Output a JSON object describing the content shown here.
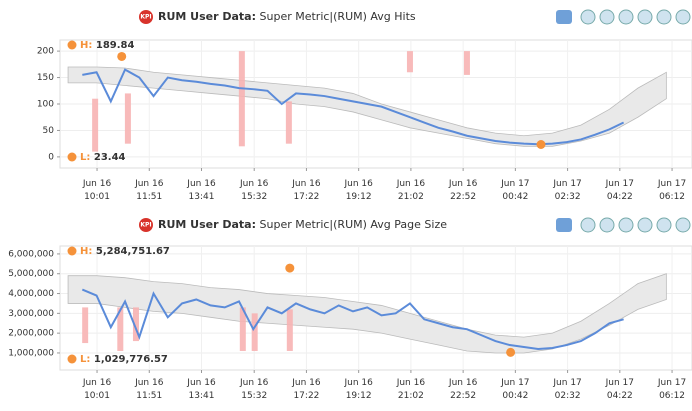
{
  "chart_data": [
    {
      "type": "line",
      "icon_label": "KPI",
      "title_prefix": "RUM User Data:",
      "title": "Super Metric|(RUM) Avg Hits",
      "color": "#5b8bd9",
      "xlim": [
        "Jun 16 08:43",
        "Jun 17 06:54"
      ],
      "xticks": [
        {
          "day": "Jun 16",
          "time": "10:01"
        },
        {
          "day": "Jun 16",
          "time": "11:51"
        },
        {
          "day": "Jun 16",
          "time": "13:41"
        },
        {
          "day": "Jun 16",
          "time": "15:32"
        },
        {
          "day": "Jun 16",
          "time": "17:22"
        },
        {
          "day": "Jun 16",
          "time": "19:12"
        },
        {
          "day": "Jun 16",
          "time": "21:02"
        },
        {
          "day": "Jun 16",
          "time": "22:52"
        },
        {
          "day": "Jun 17",
          "time": "00:42"
        },
        {
          "day": "Jun 17",
          "time": "02:32"
        },
        {
          "day": "Jun 17",
          "time": "04:22"
        },
        {
          "day": "Jun 17",
          "time": "06:12"
        }
      ],
      "ylim": [
        -21,
        221
      ],
      "yticks": [
        0,
        50,
        100,
        150,
        200
      ],
      "grid": true,
      "x": [
        "Jun 16 09:30",
        "Jun 16 10:00",
        "Jun 16 10:30",
        "Jun 16 11:00",
        "Jun 16 11:30",
        "Jun 16 12:00",
        "Jun 16 12:30",
        "Jun 16 13:00",
        "Jun 16 13:30",
        "Jun 16 14:00",
        "Jun 16 14:30",
        "Jun 16 15:00",
        "Jun 16 15:30",
        "Jun 16 16:00",
        "Jun 16 16:30",
        "Jun 16 17:00",
        "Jun 16 17:30",
        "Jun 16 18:00",
        "Jun 16 18:30",
        "Jun 16 19:00",
        "Jun 16 19:30",
        "Jun 16 20:00",
        "Jun 16 20:30",
        "Jun 16 21:00",
        "Jun 16 21:30",
        "Jun 16 22:00",
        "Jun 16 22:30",
        "Jun 16 23:00",
        "Jun 16 23:30",
        "Jun 17 00:00",
        "Jun 17 00:30",
        "Jun 17 01:00",
        "Jun 17 01:30",
        "Jun 17 02:00",
        "Jun 17 02:30",
        "Jun 17 03:00",
        "Jun 17 03:30",
        "Jun 17 04:00",
        "Jun 17 04:30"
      ],
      "values": [
        155,
        160,
        105,
        165,
        150,
        115,
        150,
        145,
        142,
        138,
        135,
        130,
        128,
        125,
        100,
        120,
        118,
        115,
        110,
        105,
        100,
        95,
        85,
        75,
        65,
        55,
        48,
        40,
        35,
        30,
        27,
        25,
        24,
        25,
        28,
        33,
        42,
        52,
        65
      ],
      "band": {
        "x": [
          "Jun 16 09:00",
          "Jun 16 10:00",
          "Jun 16 11:00",
          "Jun 16 12:00",
          "Jun 16 13:00",
          "Jun 16 14:00",
          "Jun 16 15:00",
          "Jun 16 16:00",
          "Jun 16 17:00",
          "Jun 16 18:00",
          "Jun 16 19:00",
          "Jun 16 20:00",
          "Jun 16 21:00",
          "Jun 16 22:00",
          "Jun 16 23:00",
          "Jun 17 00:00",
          "Jun 17 01:00",
          "Jun 17 02:00",
          "Jun 17 03:00",
          "Jun 17 04:00",
          "Jun 17 05:00",
          "Jun 17 06:00"
        ],
        "upper": [
          170,
          170,
          168,
          160,
          155,
          150,
          145,
          140,
          135,
          130,
          120,
          100,
          85,
          70,
          55,
          45,
          40,
          45,
          60,
          90,
          130,
          160
        ],
        "lower": [
          140,
          140,
          135,
          130,
          125,
          120,
          115,
          110,
          100,
          95,
          85,
          70,
          55,
          45,
          35,
          25,
          20,
          20,
          30,
          45,
          75,
          110
        ]
      },
      "alerts": [
        {
          "x": "Jun 16 09:57",
          "from": 10,
          "to": 110
        },
        {
          "x": "Jun 16 11:06",
          "from": 25,
          "to": 120
        },
        {
          "x": "Jun 16 15:06",
          "from": 20,
          "to": 200
        },
        {
          "x": "Jun 16 16:45",
          "from": 25,
          "to": 105
        },
        {
          "x": "Jun 16 21:00",
          "from": 160,
          "to": 200
        },
        {
          "x": "Jun 16 23:00",
          "from": 155,
          "to": 200
        }
      ],
      "high": {
        "label": "H:",
        "value": 189.84,
        "x": "Jun 16 10:53"
      },
      "low": {
        "label": "L:",
        "value": 23.44,
        "x": "Jun 17 01:36"
      }
    },
    {
      "type": "line",
      "icon_label": "KPI",
      "title_prefix": "RUM User Data:",
      "title": "Super Metric|(RUM) Avg Page Size",
      "color": "#5b8bd9",
      "xlim": [
        "Jun 16 08:43",
        "Jun 17 06:54"
      ],
      "xticks": [
        {
          "day": "Jun 16",
          "time": "10:01"
        },
        {
          "day": "Jun 16",
          "time": "11:51"
        },
        {
          "day": "Jun 16",
          "time": "13:41"
        },
        {
          "day": "Jun 16",
          "time": "15:32"
        },
        {
          "day": "Jun 16",
          "time": "17:22"
        },
        {
          "day": "Jun 16",
          "time": "19:12"
        },
        {
          "day": "Jun 16",
          "time": "21:02"
        },
        {
          "day": "Jun 16",
          "time": "22:52"
        },
        {
          "day": "Jun 17",
          "time": "00:42"
        },
        {
          "day": "Jun 17",
          "time": "02:32"
        },
        {
          "day": "Jun 17",
          "time": "04:22"
        },
        {
          "day": "Jun 17",
          "time": "06:12"
        }
      ],
      "ylim": [
        140000,
        6400000
      ],
      "yticks": [
        {
          "value": 1000000,
          "label": "1,000,000"
        },
        {
          "value": 2000000,
          "label": "2,000,000"
        },
        {
          "value": 3000000,
          "label": "3,000,000"
        },
        {
          "value": 4000000,
          "label": "4,000,000"
        },
        {
          "value": 5000000,
          "label": "5,000,000"
        },
        {
          "value": 6000000,
          "label": "6,000,000"
        }
      ],
      "grid": true,
      "x": [
        "Jun 16 09:30",
        "Jun 16 10:00",
        "Jun 16 10:30",
        "Jun 16 11:00",
        "Jun 16 11:30",
        "Jun 16 12:00",
        "Jun 16 12:30",
        "Jun 16 13:00",
        "Jun 16 13:30",
        "Jun 16 14:00",
        "Jun 16 14:30",
        "Jun 16 15:00",
        "Jun 16 15:30",
        "Jun 16 16:00",
        "Jun 16 16:30",
        "Jun 16 17:00",
        "Jun 16 17:30",
        "Jun 16 18:00",
        "Jun 16 18:30",
        "Jun 16 19:00",
        "Jun 16 19:30",
        "Jun 16 20:00",
        "Jun 16 20:30",
        "Jun 16 21:00",
        "Jun 16 21:30",
        "Jun 16 22:00",
        "Jun 16 22:30",
        "Jun 16 23:00",
        "Jun 16 23:30",
        "Jun 17 00:00",
        "Jun 17 00:30",
        "Jun 17 01:00",
        "Jun 17 01:30",
        "Jun 17 02:00",
        "Jun 17 02:30",
        "Jun 17 03:00",
        "Jun 17 03:30",
        "Jun 17 04:00",
        "Jun 17 04:30"
      ],
      "values": [
        4200000,
        3900000,
        2300000,
        3600000,
        1800000,
        4000000,
        2800000,
        3500000,
        3700000,
        3400000,
        3300000,
        3600000,
        2200000,
        3300000,
        3000000,
        3500000,
        3200000,
        3000000,
        3400000,
        3100000,
        3300000,
        2900000,
        3000000,
        3500000,
        2700000,
        2500000,
        2300000,
        2200000,
        1900000,
        1600000,
        1400000,
        1300000,
        1200000,
        1250000,
        1400000,
        1600000,
        2000000,
        2500000,
        2700000
      ],
      "band": {
        "x": [
          "Jun 16 09:00",
          "Jun 16 10:00",
          "Jun 16 11:00",
          "Jun 16 12:00",
          "Jun 16 13:00",
          "Jun 16 14:00",
          "Jun 16 15:00",
          "Jun 16 16:00",
          "Jun 16 17:00",
          "Jun 16 18:00",
          "Jun 16 19:00",
          "Jun 16 20:00",
          "Jun 16 21:00",
          "Jun 16 22:00",
          "Jun 16 23:00",
          "Jun 17 00:00",
          "Jun 17 01:00",
          "Jun 17 02:00",
          "Jun 17 03:00",
          "Jun 17 04:00",
          "Jun 17 05:00",
          "Jun 17 06:00"
        ],
        "upper": [
          4900000,
          4900000,
          4800000,
          4600000,
          4500000,
          4300000,
          4200000,
          4000000,
          3900000,
          3800000,
          3600000,
          3400000,
          3000000,
          2600000,
          2200000,
          1900000,
          1800000,
          2000000,
          2600000,
          3500000,
          4500000,
          5000000
        ],
        "lower": [
          3500000,
          3500000,
          3300000,
          3100000,
          3000000,
          2800000,
          2600000,
          2500000,
          2400000,
          2300000,
          2200000,
          2000000,
          1700000,
          1400000,
          1100000,
          1000000,
          1000000,
          1200000,
          1700000,
          2400000,
          3200000,
          3700000
        ]
      },
      "alerts": [
        {
          "x": "Jun 16 09:36",
          "from": 1500000,
          "to": 3300000
        },
        {
          "x": "Jun 16 10:50",
          "from": 1100000,
          "to": 3300000
        },
        {
          "x": "Jun 16 11:23",
          "from": 1600000,
          "to": 3300000
        },
        {
          "x": "Jun 16 15:08",
          "from": 1100000,
          "to": 3300000
        },
        {
          "x": "Jun 16 15:33",
          "from": 1100000,
          "to": 3000000
        },
        {
          "x": "Jun 16 16:47",
          "from": 1100000,
          "to": 3200000
        }
      ],
      "high": {
        "label": "H:",
        "value": 5284751.67,
        "value_label": "5,284,751.67",
        "x": "Jun 16 16:47"
      },
      "low": {
        "label": "L:",
        "value": 1029776.57,
        "value_label": "1,029,776.57",
        "x": "Jun 17 00:32"
      }
    }
  ]
}
